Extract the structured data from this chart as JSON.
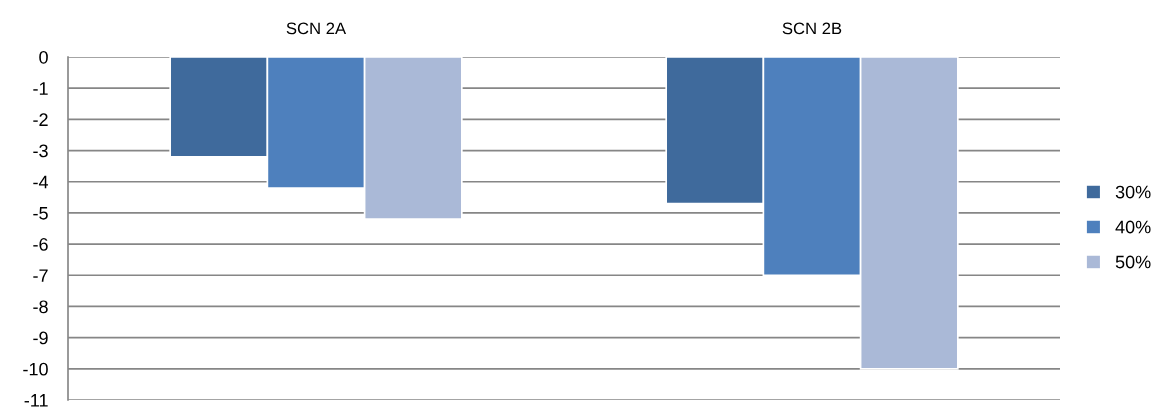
{
  "chart_data": {
    "type": "bar",
    "categories": [
      "SCN 2A",
      "SCN 2B"
    ],
    "series": [
      {
        "name": "30%",
        "color": "#3f6a9c",
        "values": [
          -3.2,
          -4.7
        ]
      },
      {
        "name": "40%",
        "color": "#4e80bd",
        "values": [
          -4.2,
          -7.0
        ]
      },
      {
        "name": "50%",
        "color": "#aab9d7",
        "values": [
          -5.2,
          -10.0
        ]
      }
    ],
    "ylim": [
      -11,
      0
    ],
    "yticks": [
      0,
      -1,
      -2,
      -3,
      -4,
      -5,
      -6,
      -7,
      -8,
      -9,
      -10,
      -11
    ],
    "grid": "y",
    "legend": "right"
  }
}
